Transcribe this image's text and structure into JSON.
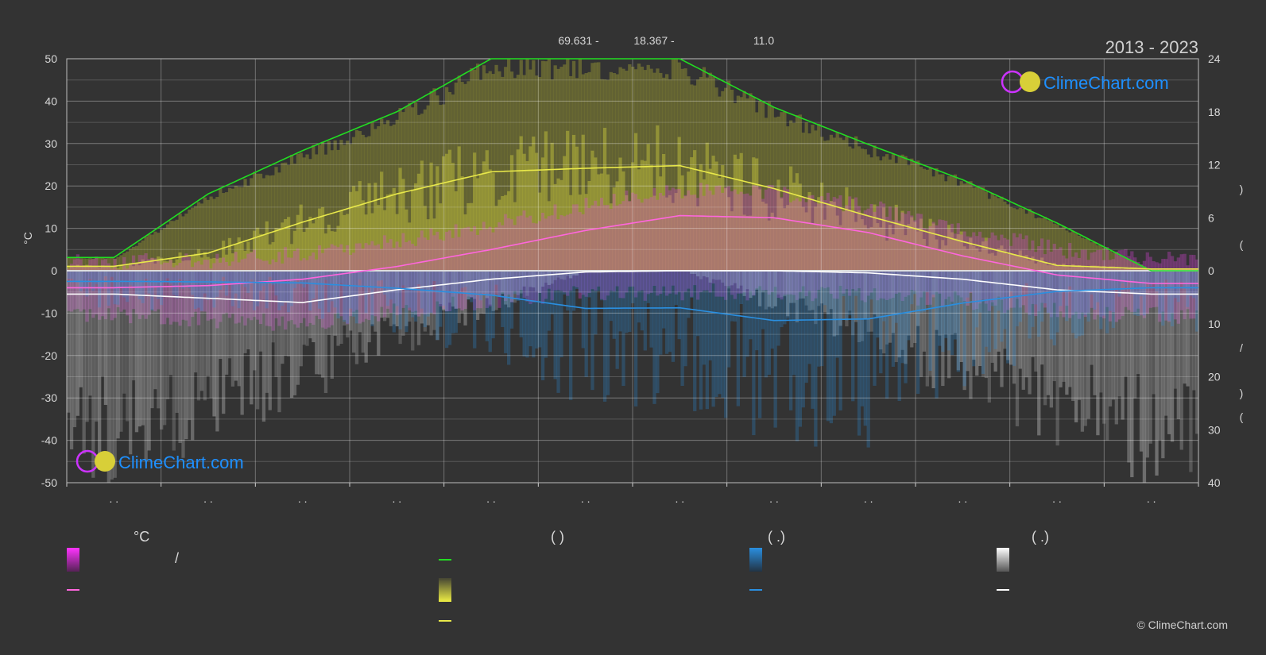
{
  "header": {
    "daylight_hours": "69.631 -",
    "sunshine_hours": "18.367 -",
    "value_right": "11.0",
    "years": "2013 - 2023"
  },
  "brand": {
    "name": "ClimeChart.com",
    "copyright": "© ClimeChart.com"
  },
  "axes": {
    "left_unit": "°C",
    "left_ticks": [
      "50",
      "40",
      "30",
      "20",
      "10",
      "0",
      "-10",
      "-20",
      "-30",
      "-40",
      "-50"
    ],
    "right_top_ticks": [
      "24",
      "18",
      "12",
      "6",
      "0"
    ],
    "right_bottom_ticks": [
      "10",
      "20",
      "30",
      "40"
    ],
    "right_labels": [
      ")",
      "(",
      "/",
      ")",
      "("
    ],
    "month_labels": [
      ". .",
      ". .",
      ". .",
      ". .",
      ". .",
      ". .",
      ". .",
      ". .",
      ". .",
      ". .",
      ". .",
      ". ."
    ]
  },
  "legend": {
    "col1_header": "°C",
    "col1_range_sep": "/",
    "col2_header": "(          )",
    "col3_header": "(   .)",
    "col4_header": "(   .)"
  },
  "colors": {
    "background": "#333333",
    "daylight": "#22dd22",
    "sunshine": "#e8e84a",
    "temp_max": "#ff66dd",
    "temp_min": "#ffffff",
    "precip": "#2a8fe0",
    "snow": "#cccccc",
    "temp_band": "#dd44dd"
  },
  "chart_data": {
    "type": "line",
    "period": "2013 - 2023",
    "x": [
      1,
      2,
      3,
      4,
      5,
      6,
      7,
      8,
      9,
      10,
      11,
      12
    ],
    "ylim_left": [
      -50,
      50
    ],
    "ylim_right_top": [
      0,
      24
    ],
    "ylim_right_bottom": [
      0,
      40
    ],
    "series": [
      {
        "key": "daylight",
        "axis": "right_top",
        "values": [
          1.5,
          8.7,
          13.6,
          18.0,
          24,
          24,
          24,
          18.5,
          14.3,
          10.3,
          5.4,
          0
        ]
      },
      {
        "key": "sunshine",
        "axis": "right_top",
        "values": [
          0.5,
          2.0,
          5.5,
          8.7,
          11.2,
          11.6,
          11.9,
          9.3,
          6.2,
          3.3,
          0.6,
          0.2
        ]
      },
      {
        "key": "temp_mean_max",
        "axis": "left",
        "values": [
          -4,
          -3.5,
          -2,
          1,
          5,
          9.5,
          13,
          12.5,
          9,
          3.5,
          -1,
          -3
        ]
      },
      {
        "key": "temp_mean_min",
        "axis": "left",
        "values": [
          -5.5,
          -6.5,
          -7.5,
          -4.5,
          -2,
          -0.3,
          0,
          0,
          -0.5,
          -2,
          -4.5,
          -5.5
        ]
      },
      {
        "key": "precipitation",
        "axis": "right_bottom",
        "values": [
          2.0,
          2.1,
          2.3,
          3.3,
          4.6,
          7.1,
          7.0,
          9.4,
          9.1,
          6.1,
          3.9,
          3.2
        ]
      }
    ]
  }
}
